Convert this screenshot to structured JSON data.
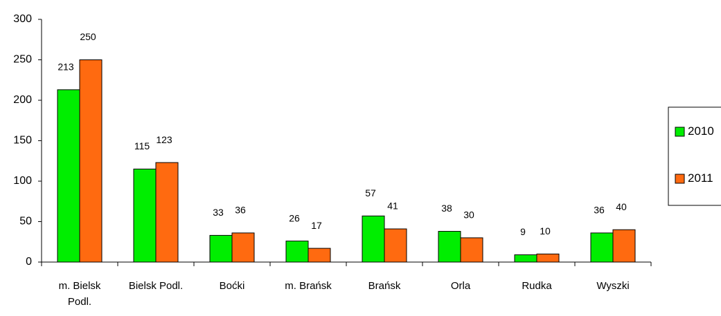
{
  "chart_data": {
    "type": "bar",
    "categories": [
      "m. Bielsk Podl.",
      "Bielsk Podl.",
      "Boćki",
      "m. Brańsk",
      "Brańsk",
      "Orla",
      "Rudka",
      "Wyszki"
    ],
    "series": [
      {
        "name": "2010",
        "color": "#00ee00",
        "values": [
          213,
          115,
          33,
          26,
          57,
          38,
          9,
          36
        ]
      },
      {
        "name": "2011",
        "color": "#ff6a10",
        "values": [
          250,
          123,
          36,
          17,
          41,
          30,
          10,
          40
        ]
      }
    ],
    "ylim": [
      0,
      300
    ],
    "yticks": [
      0,
      50,
      100,
      150,
      200,
      250,
      300
    ],
    "grid": false,
    "legend": "right"
  }
}
